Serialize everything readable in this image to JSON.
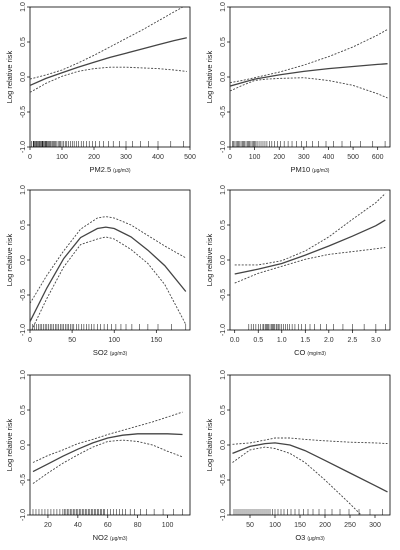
{
  "chart_data": [
    {
      "type": "line",
      "xlabel": "PM2.5",
      "xunit": "(μg/m3)",
      "ylabel": "Log relative risk",
      "xlim": [
        0,
        500
      ],
      "ylim": [
        -1,
        1
      ],
      "xticks": [
        0,
        100,
        200,
        300,
        400,
        500
      ],
      "yticks": [
        -1,
        -0.5,
        0,
        0.5,
        1
      ],
      "xtick_labels": [
        "0",
        "100",
        "200",
        "300",
        "400",
        "500"
      ],
      "ytick_labels": [
        "-1.0",
        "-0.5",
        "0.0",
        "0.5",
        "1.0"
      ],
      "series": [
        {
          "role": "fit",
          "x": [
            0,
            50,
            100,
            150,
            200,
            250,
            300,
            350,
            400,
            450,
            490
          ],
          "y": [
            -0.12,
            -0.02,
            0.06,
            0.14,
            0.21,
            0.28,
            0.34,
            0.4,
            0.46,
            0.52,
            0.56
          ]
        },
        {
          "role": "upper",
          "x": [
            0,
            50,
            100,
            150,
            200,
            250,
            300,
            350,
            400,
            450,
            490
          ],
          "y": [
            -0.03,
            0.03,
            0.1,
            0.2,
            0.31,
            0.43,
            0.55,
            0.67,
            0.8,
            0.93,
            1.03
          ]
        },
        {
          "role": "lower",
          "x": [
            0,
            50,
            100,
            150,
            200,
            250,
            300,
            350,
            400,
            450,
            490
          ],
          "y": [
            -0.22,
            -0.09,
            0.01,
            0.08,
            0.12,
            0.14,
            0.14,
            0.13,
            0.12,
            0.1,
            0.08
          ]
        }
      ],
      "rug_x": [
        5,
        10,
        12,
        15,
        18,
        20,
        22,
        25,
        28,
        30,
        32,
        35,
        38,
        40,
        42,
        45,
        48,
        50,
        52,
        55,
        58,
        60,
        63,
        66,
        70,
        73,
        77,
        80,
        84,
        88,
        92,
        96,
        100,
        105,
        110,
        115,
        120,
        126,
        132,
        138,
        145,
        152,
        160,
        168,
        176,
        185,
        195,
        205,
        218,
        230,
        245,
        260,
        280,
        300,
        320,
        345,
        370,
        400,
        440,
        480
      ]
    },
    {
      "type": "line",
      "xlabel": "PM10",
      "xunit": "(μg/m3)",
      "ylabel": "Log relative risk",
      "xlim": [
        0,
        650
      ],
      "ylim": [
        -1,
        1
      ],
      "xticks": [
        0,
        100,
        200,
        300,
        400,
        500,
        600
      ],
      "yticks": [
        -1,
        -0.5,
        0,
        0.5,
        1
      ],
      "xtick_labels": [
        "0",
        "100",
        "200",
        "300",
        "400",
        "500",
        "600"
      ],
      "ytick_labels": [
        "-1.0",
        "-0.5",
        "0.0",
        "0.5",
        "1.0"
      ],
      "series": [
        {
          "role": "fit",
          "x": [
            0,
            50,
            100,
            150,
            200,
            300,
            400,
            500,
            600,
            640
          ],
          "y": [
            -0.13,
            -0.08,
            -0.03,
            0.0,
            0.03,
            0.08,
            0.12,
            0.15,
            0.18,
            0.19
          ]
        },
        {
          "role": "upper",
          "x": [
            0,
            50,
            100,
            150,
            200,
            300,
            400,
            500,
            600,
            640
          ],
          "y": [
            -0.08,
            -0.05,
            -0.01,
            0.03,
            0.07,
            0.17,
            0.29,
            0.43,
            0.6,
            0.68
          ]
        },
        {
          "role": "lower",
          "x": [
            0,
            50,
            100,
            150,
            200,
            300,
            400,
            500,
            600,
            640
          ],
          "y": [
            -0.2,
            -0.12,
            -0.05,
            -0.03,
            -0.02,
            -0.01,
            -0.05,
            -0.12,
            -0.24,
            -0.3
          ]
        }
      ],
      "rug_x": [
        10,
        15,
        20,
        25,
        30,
        35,
        40,
        45,
        50,
        55,
        60,
        65,
        70,
        75,
        80,
        85,
        90,
        95,
        100,
        105,
        110,
        118,
        126,
        134,
        142,
        150,
        160,
        170,
        180,
        192,
        205,
        220,
        236,
        252,
        270,
        290,
        310,
        335,
        360,
        390,
        420,
        455,
        490,
        530,
        580,
        630
      ]
    },
    {
      "type": "line",
      "xlabel": "SO2",
      "xunit": "(μg/m3)",
      "ylabel": "Log relative risk",
      "xlim": [
        0,
        190
      ],
      "ylim": [
        -1,
        1
      ],
      "xticks": [
        0,
        50,
        100,
        150
      ],
      "yticks": [
        -1,
        -0.5,
        0,
        0.5,
        1
      ],
      "xtick_labels": [
        "0",
        "50",
        "100",
        "150"
      ],
      "ytick_labels": [
        "-1.0",
        "-0.5",
        "0.0",
        "0.5",
        "1.0"
      ],
      "series": [
        {
          "role": "fit",
          "x": [
            0,
            20,
            40,
            60,
            80,
            90,
            100,
            120,
            140,
            160,
            185
          ],
          "y": [
            -0.88,
            -0.4,
            0.02,
            0.32,
            0.45,
            0.47,
            0.45,
            0.33,
            0.14,
            -0.08,
            -0.45
          ]
        },
        {
          "role": "upper",
          "x": [
            0,
            20,
            40,
            60,
            80,
            90,
            100,
            120,
            140,
            160,
            185
          ],
          "y": [
            -0.62,
            -0.22,
            0.13,
            0.44,
            0.6,
            0.62,
            0.6,
            0.5,
            0.35,
            0.2,
            0.03
          ]
        },
        {
          "role": "lower",
          "x": [
            0,
            20,
            40,
            60,
            80,
            90,
            100,
            120,
            140,
            160,
            185
          ],
          "y": [
            -1.05,
            -0.55,
            -0.1,
            0.22,
            0.3,
            0.33,
            0.3,
            0.15,
            -0.05,
            -0.35,
            -0.92
          ]
        }
      ],
      "rug_x": [
        3,
        5,
        8,
        10,
        12,
        14,
        16,
        18,
        20,
        22,
        24,
        26,
        28,
        30,
        32,
        34,
        36,
        38,
        40,
        42,
        44,
        46,
        48,
        50,
        52,
        55,
        58,
        61,
        64,
        67,
        70,
        73,
        76,
        80,
        84,
        88,
        92,
        97,
        102,
        108,
        114,
        121,
        130,
        140,
        152,
        168,
        185
      ]
    },
    {
      "type": "line",
      "xlabel": "CO",
      "xunit": "(mg/m3)",
      "ylabel": "Log relative risk",
      "xlim": [
        -0.1,
        3.3
      ],
      "ylim": [
        -1,
        1
      ],
      "xticks": [
        0,
        0.5,
        1,
        1.5,
        2,
        2.5,
        3
      ],
      "yticks": [
        -1,
        -0.5,
        0,
        0.5,
        1
      ],
      "xtick_labels": [
        "0.0",
        "0.5",
        "1.0",
        "1.5",
        "2.0",
        "2.5",
        "3.0"
      ],
      "ytick_labels": [
        "-1.0",
        "-0.5",
        "0.0",
        "0.5",
        "1.0"
      ],
      "series": [
        {
          "role": "fit",
          "x": [
            0,
            0.5,
            1,
            1.5,
            2,
            2.5,
            3,
            3.2
          ],
          "y": [
            -0.2,
            -0.13,
            -0.05,
            0.07,
            0.2,
            0.34,
            0.49,
            0.57
          ]
        },
        {
          "role": "upper",
          "x": [
            0,
            0.5,
            1,
            1.5,
            2,
            2.5,
            3,
            3.2
          ],
          "y": [
            -0.07,
            -0.07,
            -0.01,
            0.13,
            0.33,
            0.58,
            0.82,
            0.95
          ]
        },
        {
          "role": "lower",
          "x": [
            0,
            0.5,
            1,
            1.5,
            2,
            2.5,
            3,
            3.2
          ],
          "y": [
            -0.33,
            -0.19,
            -0.09,
            0.01,
            0.08,
            0.12,
            0.16,
            0.18
          ]
        }
      ],
      "rug_x": [
        0.3,
        0.35,
        0.4,
        0.45,
        0.5,
        0.55,
        0.6,
        0.62,
        0.65,
        0.68,
        0.7,
        0.72,
        0.75,
        0.78,
        0.8,
        0.82,
        0.85,
        0.88,
        0.9,
        0.93,
        0.96,
        1.0,
        1.04,
        1.08,
        1.12,
        1.17,
        1.22,
        1.28,
        1.35,
        1.42,
        1.5,
        1.6,
        1.7,
        1.82,
        1.95,
        2.1,
        2.3,
        2.5,
        2.75,
        3.0,
        3.2
      ]
    },
    {
      "type": "line",
      "xlabel": "NO2",
      "xunit": "(μg/m3)",
      "ylabel": "Log relative risk",
      "xlim": [
        8,
        115
      ],
      "ylim": [
        -1,
        1
      ],
      "xticks": [
        20,
        40,
        60,
        80,
        100
      ],
      "yticks": [
        -1,
        -0.5,
        0,
        0.5,
        1
      ],
      "xtick_labels": [
        "20",
        "40",
        "60",
        "80",
        "100"
      ],
      "ytick_labels": [
        "-1.0",
        "-0.5",
        "0.0",
        "0.5",
        "1.0"
      ],
      "series": [
        {
          "role": "fit",
          "x": [
            10,
            20,
            30,
            40,
            50,
            60,
            70,
            80,
            90,
            100,
            110
          ],
          "y": [
            -0.38,
            -0.27,
            -0.16,
            -0.06,
            0.03,
            0.1,
            0.14,
            0.16,
            0.16,
            0.16,
            0.15
          ]
        },
        {
          "role": "upper",
          "x": [
            10,
            20,
            30,
            40,
            50,
            60,
            70,
            80,
            90,
            100,
            110
          ],
          "y": [
            -0.25,
            -0.15,
            -0.07,
            0.02,
            0.08,
            0.15,
            0.21,
            0.27,
            0.33,
            0.4,
            0.47
          ]
        },
        {
          "role": "lower",
          "x": [
            10,
            20,
            30,
            40,
            50,
            60,
            70,
            80,
            90,
            100,
            110
          ],
          "y": [
            -0.55,
            -0.4,
            -0.26,
            -0.14,
            -0.03,
            0.05,
            0.07,
            0.05,
            0.0,
            -0.09,
            -0.17
          ]
        }
      ],
      "rug_x": [
        10,
        12,
        14,
        16,
        18,
        20,
        22,
        24,
        26,
        28,
        30,
        31,
        32,
        33,
        34,
        35,
        36,
        37,
        38,
        39,
        40,
        41,
        42,
        43,
        44,
        45,
        46,
        47,
        48,
        49,
        50,
        51,
        52,
        53,
        54,
        55,
        56,
        57,
        58,
        60,
        62,
        64,
        66,
        68,
        70,
        72,
        75,
        78,
        82,
        86,
        91,
        97,
        104,
        110
      ]
    },
    {
      "type": "line",
      "xlabel": "O3",
      "xunit": "(μg/m3)",
      "ylabel": "Log relative risk",
      "xlim": [
        10,
        330
      ],
      "ylim": [
        -1,
        1
      ],
      "xticks": [
        50,
        100,
        150,
        200,
        250,
        300
      ],
      "yticks": [
        -1,
        -0.5,
        0,
        0.5,
        1
      ],
      "xtick_labels": [
        "50",
        "100",
        "150",
        "200",
        "250",
        "300"
      ],
      "ytick_labels": [
        "-1.0",
        "-0.5",
        "0.0",
        "0.5",
        "1.0"
      ],
      "series": [
        {
          "role": "fit",
          "x": [
            15,
            50,
            80,
            100,
            130,
            160,
            200,
            250,
            300,
            325
          ],
          "y": [
            -0.12,
            -0.02,
            0.02,
            0.03,
            0.0,
            -0.08,
            -0.22,
            -0.4,
            -0.58,
            -0.67
          ]
        },
        {
          "role": "upper",
          "x": [
            15,
            50,
            80,
            100,
            130,
            160,
            200,
            250,
            300,
            325
          ],
          "y": [
            0.01,
            0.03,
            0.07,
            0.1,
            0.1,
            0.08,
            0.06,
            0.04,
            0.03,
            0.02
          ]
        },
        {
          "role": "lower",
          "x": [
            15,
            50,
            80,
            100,
            130,
            160,
            200,
            250,
            300,
            325
          ],
          "y": [
            -0.25,
            -0.07,
            -0.03,
            -0.05,
            -0.12,
            -0.25,
            -0.5,
            -0.84,
            -1.2,
            -1.4
          ]
        }
      ],
      "rug_x": [
        18,
        22,
        26,
        30,
        34,
        38,
        42,
        46,
        50,
        54,
        58,
        62,
        66,
        70,
        74,
        78,
        82,
        86,
        90,
        95,
        100,
        106,
        112,
        118,
        125,
        132,
        140,
        148,
        157,
        166,
        176,
        188,
        200,
        214,
        230,
        248,
        268,
        290,
        315
      ]
    }
  ]
}
